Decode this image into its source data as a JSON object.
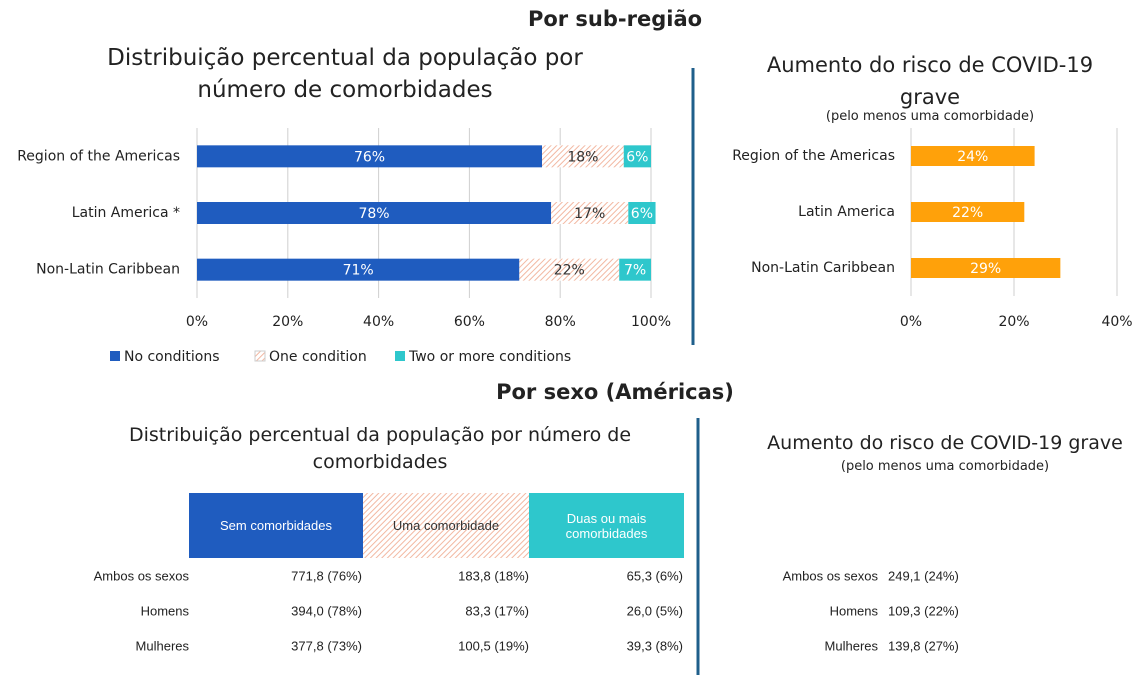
{
  "headings": [
    "Por sub-região",
    "Por sexo (Américas)"
  ],
  "chart_data": [
    {
      "type": "bar",
      "orientation": "horizontal",
      "stacked": true,
      "title": "Distribuição percentual da população por número de comorbidades",
      "categories": [
        "Region of the Americas",
        "Latin America *",
        "Non-Latin Caribbean"
      ],
      "series": [
        {
          "name": "No conditions",
          "color": "#1f5cbf",
          "values": [
            76,
            78,
            71
          ],
          "value_labels": [
            "76%",
            "78%",
            "71%"
          ]
        },
        {
          "name": "One condition",
          "color": "#f2b8a2",
          "pattern": "hatch",
          "values": [
            18,
            17,
            22
          ],
          "value_labels": [
            "18%",
            "17%",
            "22%"
          ]
        },
        {
          "name": "Two or more conditions",
          "color": "#2ec7cc",
          "values": [
            6,
            6,
            7
          ],
          "value_labels": [
            "6%",
            "6%",
            "7%"
          ]
        }
      ],
      "xlim": [
        0,
        100
      ],
      "xticks": [
        {
          "value": 0,
          "label": "0%"
        },
        {
          "value": 20,
          "label": "20%"
        },
        {
          "value": 40,
          "label": "40%"
        },
        {
          "value": 60,
          "label": "60%"
        },
        {
          "value": 80,
          "label": "80%"
        },
        {
          "value": 100,
          "label": "100%"
        }
      ],
      "grid": true,
      "legend": "bottom"
    },
    {
      "type": "bar",
      "orientation": "horizontal",
      "title": "Aumento do risco de COVID-19 grave",
      "subtitle": "(pelo menos uma comorbidade)",
      "categories": [
        "Region of the Americas",
        "Latin America",
        "Non-Latin Caribbean"
      ],
      "values": [
        24,
        22,
        29
      ],
      "value_labels": [
        "24%",
        "22%",
        "29%"
      ],
      "color": "#ffa10a",
      "xlim": [
        0,
        40
      ],
      "xticks": [
        {
          "value": 0,
          "label": "0%"
        },
        {
          "value": 20,
          "label": "20%"
        },
        {
          "value": 40,
          "label": "40%"
        }
      ],
      "grid": true
    }
  ],
  "tables": [
    {
      "title": "Distribuição percentual da população por número de comorbidades",
      "columns": [
        "Sem comorbidades",
        "Uma comorbidade",
        "Duas ou mais comorbidades"
      ],
      "rows": [
        [
          "Ambos os sexos",
          "771,8 (76%)",
          "183,8 (18%)",
          "65,3 (6%)"
        ],
        [
          "Homens",
          "394,0 (78%)",
          "83,3 (17%)",
          "26,0 (5%)"
        ],
        [
          "Mulheres",
          "377,8 (73%)",
          "100,5 (19%)",
          "39,3 (8%)"
        ]
      ]
    },
    {
      "title": "Aumento do risco de COVID-19 grave",
      "subtitle": "(pelo menos uma comorbidade)",
      "rows": [
        [
          "Ambos os sexos",
          "249,1 (24%)"
        ],
        [
          "Homens",
          "109,3 (22%)"
        ],
        [
          "Mulheres",
          "139,8 (27%)"
        ]
      ]
    }
  ]
}
